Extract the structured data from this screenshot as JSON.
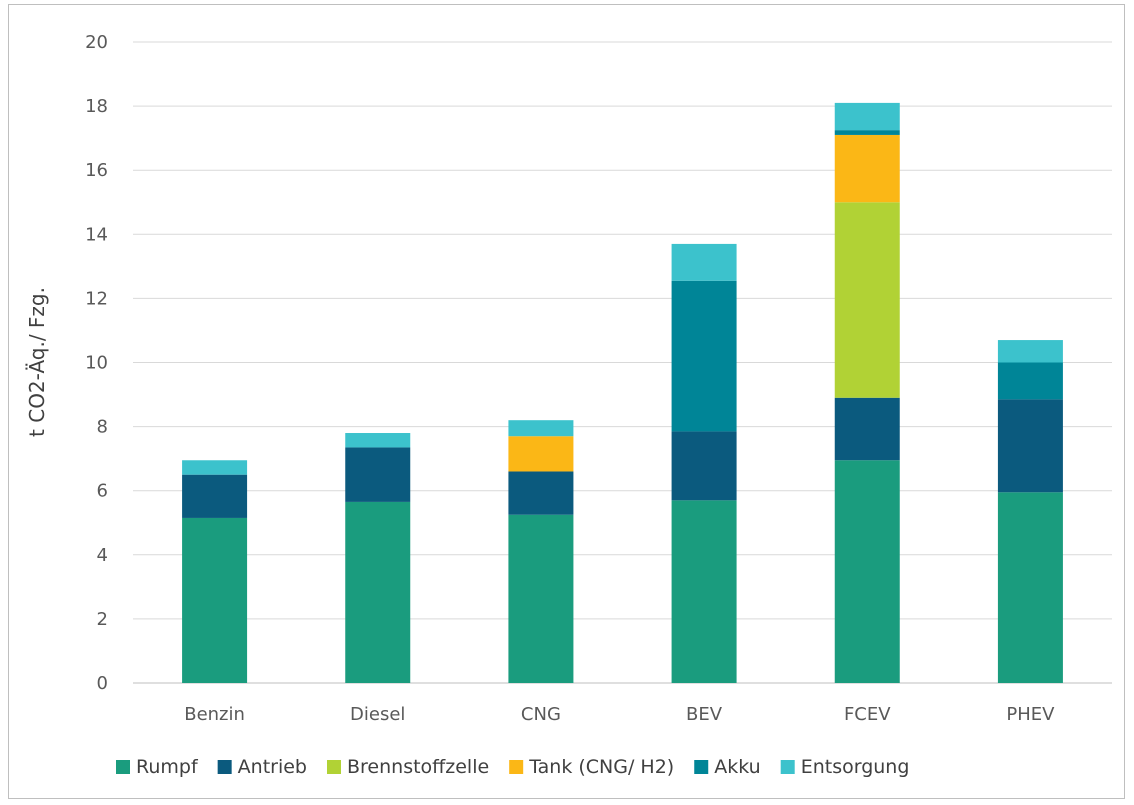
{
  "chart_data": {
    "type": "bar",
    "stacked": true,
    "title": "",
    "xlabel": "",
    "ylabel": "t CO2-Äq./ Fzg.",
    "ylim": [
      0,
      20
    ],
    "yticks": [
      0,
      2,
      4,
      6,
      8,
      10,
      12,
      14,
      16,
      18,
      20
    ],
    "grid": true,
    "legend_position": "bottom",
    "categories": [
      "Benzin",
      "Diesel",
      "CNG",
      "BEV",
      "FCEV",
      "PHEV"
    ],
    "series": [
      {
        "name": "Rumpf",
        "color": "#1a9c7e",
        "values": [
          5.15,
          5.65,
          5.25,
          5.7,
          6.95,
          5.95
        ]
      },
      {
        "name": "Antrieb",
        "color": "#0b5a7e",
        "values": [
          1.35,
          1.7,
          1.35,
          2.15,
          1.95,
          2.9
        ]
      },
      {
        "name": "Brennstoffzelle",
        "color": "#b1d235",
        "values": [
          0,
          0,
          0,
          0,
          6.1,
          0
        ]
      },
      {
        "name": "Tank (CNG/ H2)",
        "color": "#fbb716",
        "values": [
          0,
          0,
          1.1,
          0,
          2.1,
          0
        ]
      },
      {
        "name": "Akku",
        "color": "#008597",
        "values": [
          0,
          0,
          0,
          4.7,
          0.15,
          1.15
        ]
      },
      {
        "name": "Entsorgung",
        "color": "#3cc2cc",
        "values": [
          0.45,
          0.45,
          0.5,
          1.15,
          0.85,
          0.7
        ]
      }
    ]
  }
}
